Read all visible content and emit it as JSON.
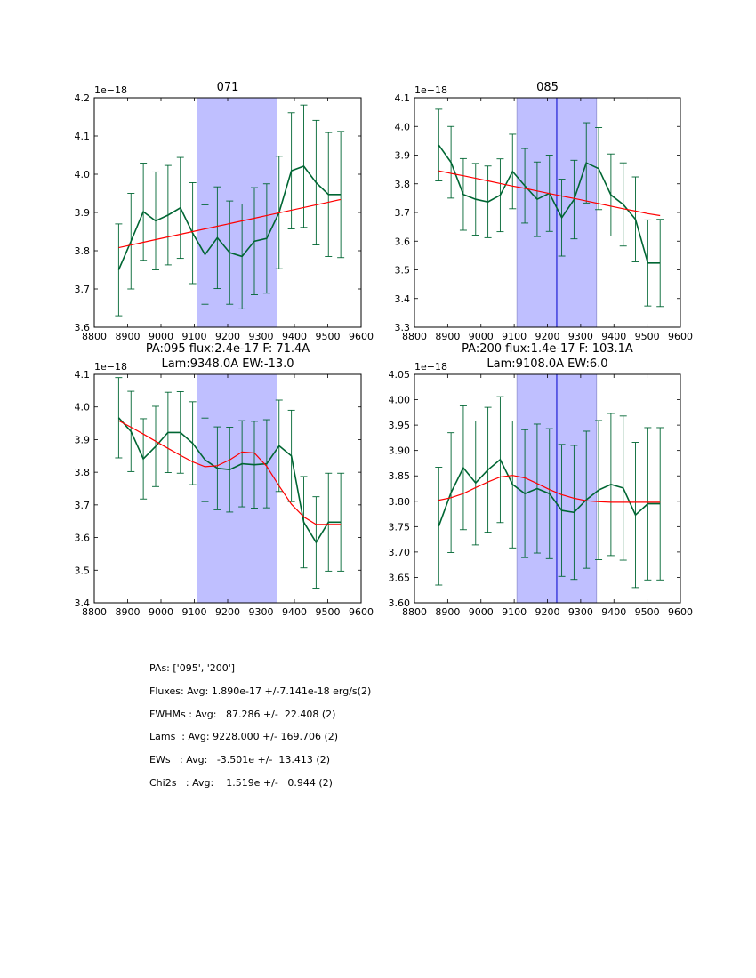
{
  "chart_data": [
    {
      "type": "line",
      "title": "071",
      "subtitle": "",
      "xlabel": "",
      "ylabel": "",
      "offset_label": "1e−18",
      "xlim": [
        8800,
        9600
      ],
      "xticks": [
        8800,
        8900,
        9000,
        9100,
        9200,
        9300,
        9400,
        9500,
        9600
      ],
      "ylim": [
        3.6,
        4.2
      ],
      "yticks": [
        3.6,
        3.7,
        3.8,
        3.9,
        4.0,
        4.1,
        4.2
      ],
      "ytick_labels": [
        "3.6",
        "3.7",
        "3.8",
        "3.9",
        "4.0",
        "4.1",
        "4.2"
      ],
      "band": [
        9108,
        9348
      ],
      "vline": 9228,
      "x": [
        8873,
        8910,
        8947,
        8984,
        9021,
        9058,
        9095,
        9132,
        9169,
        9206,
        9243,
        9280,
        9317,
        9354,
        9391,
        9428,
        9465,
        9502,
        9539
      ],
      "series": [
        {
          "name": "flux",
          "color": "#006633",
          "values": [
            3.75,
            3.825,
            3.902,
            3.878,
            3.893,
            3.912,
            3.846,
            3.79,
            3.834,
            3.795,
            3.785,
            3.825,
            3.832,
            3.9,
            4.009,
            4.021,
            3.978,
            3.947,
            3.947
          ]
        },
        {
          "name": "fit",
          "color": "#ff0000",
          "values": [
            3.808,
            3.815,
            3.822,
            3.829,
            3.836,
            3.843,
            3.85,
            3.857,
            3.864,
            3.871,
            3.878,
            3.885,
            3.892,
            3.899,
            3.906,
            3.913,
            3.92,
            3.927,
            3.934
          ]
        }
      ],
      "errors": [
        0.12,
        0.125,
        0.127,
        0.128,
        0.13,
        0.132,
        0.132,
        0.13,
        0.133,
        0.135,
        0.137,
        0.14,
        0.143,
        0.147,
        0.152,
        0.16,
        0.163,
        0.162,
        0.165
      ]
    },
    {
      "type": "line",
      "title": "085",
      "subtitle": "",
      "xlabel": "",
      "ylabel": "",
      "offset_label": "1e−18",
      "xlim": [
        8800,
        9600
      ],
      "xticks": [
        8800,
        8900,
        9000,
        9100,
        9200,
        9300,
        9400,
        9500,
        9600
      ],
      "ylim": [
        3.3,
        4.1
      ],
      "yticks": [
        3.3,
        3.4,
        3.5,
        3.6,
        3.7,
        3.8,
        3.9,
        4.0,
        4.1
      ],
      "ytick_labels": [
        "3.3",
        "3.4",
        "3.5",
        "3.6",
        "3.7",
        "3.8",
        "3.9",
        "4.0",
        "4.1"
      ],
      "band": [
        9108,
        9348
      ],
      "vline": 9228,
      "x": [
        8873,
        8910,
        8947,
        8984,
        9021,
        9058,
        9095,
        9132,
        9169,
        9206,
        9243,
        9280,
        9317,
        9354,
        9391,
        9428,
        9465,
        9502,
        9539
      ],
      "series": [
        {
          "name": "flux",
          "color": "#006633",
          "values": [
            3.935,
            3.875,
            3.763,
            3.746,
            3.737,
            3.76,
            3.843,
            3.793,
            3.746,
            3.767,
            3.682,
            3.745,
            3.873,
            3.853,
            3.761,
            3.728,
            3.676,
            3.524,
            3.524
          ]
        },
        {
          "name": "fit",
          "color": "#ff0000",
          "values": [
            3.845,
            3.836,
            3.828,
            3.819,
            3.81,
            3.801,
            3.792,
            3.784,
            3.775,
            3.766,
            3.757,
            3.749,
            3.74,
            3.731,
            3.722,
            3.713,
            3.705,
            3.696,
            3.689
          ]
        }
      ],
      "errors": [
        0.125,
        0.125,
        0.125,
        0.125,
        0.125,
        0.127,
        0.13,
        0.13,
        0.13,
        0.133,
        0.134,
        0.137,
        0.14,
        0.143,
        0.143,
        0.145,
        0.148,
        0.15,
        0.152
      ]
    },
    {
      "type": "line",
      "title": "PA:095 flux:2.4e-17 F: 71.4A",
      "subtitle": "Lam:9348.0A EW:-13.0",
      "xlabel": "",
      "ylabel": "",
      "offset_label": "1e−18",
      "xlim": [
        8800,
        9600
      ],
      "xticks": [
        8800,
        8900,
        9000,
        9100,
        9200,
        9300,
        9400,
        9500,
        9600
      ],
      "ylim": [
        3.4,
        4.1
      ],
      "yticks": [
        3.4,
        3.5,
        3.6,
        3.7,
        3.8,
        3.9,
        4.0,
        4.1
      ],
      "ytick_labels": [
        "3.4",
        "3.5",
        "3.6",
        "3.7",
        "3.8",
        "3.9",
        "4.0",
        "4.1"
      ],
      "band": [
        9108,
        9348
      ],
      "vline": 9228,
      "x": [
        8873,
        8910,
        8947,
        8984,
        9021,
        9058,
        9095,
        9132,
        9169,
        9206,
        9243,
        9280,
        9317,
        9354,
        9391,
        9428,
        9465,
        9502,
        9539
      ],
      "series": [
        {
          "name": "flux",
          "color": "#006633",
          "values": [
            3.967,
            3.925,
            3.841,
            3.879,
            3.922,
            3.922,
            3.889,
            3.838,
            3.812,
            3.808,
            3.826,
            3.823,
            3.826,
            3.881,
            3.85,
            3.647,
            3.585,
            3.647,
            3.647
          ]
        },
        {
          "name": "fit",
          "color": "#ff0000",
          "values": [
            3.958,
            3.938,
            3.917,
            3.895,
            3.873,
            3.852,
            3.832,
            3.817,
            3.82,
            3.838,
            3.862,
            3.859,
            3.818,
            3.758,
            3.702,
            3.663,
            3.64,
            3.64,
            3.64
          ]
        }
      ],
      "errors": [
        0.123,
        0.123,
        0.123,
        0.123,
        0.123,
        0.125,
        0.127,
        0.128,
        0.127,
        0.13,
        0.132,
        0.133,
        0.135,
        0.14,
        0.14,
        0.14,
        0.14,
        0.15,
        0.15
      ]
    },
    {
      "type": "line",
      "title": "PA:200 flux:1.4e-17 F: 103.1A",
      "subtitle": "Lam:9108.0A EW:6.0",
      "xlabel": "",
      "ylabel": "",
      "offset_label": "1e−18",
      "xlim": [
        8800,
        9600
      ],
      "xticks": [
        8800,
        8900,
        9000,
        9100,
        9200,
        9300,
        9400,
        9500,
        9600
      ],
      "ylim": [
        3.6,
        4.05
      ],
      "yticks": [
        3.6,
        3.65,
        3.7,
        3.75,
        3.8,
        3.85,
        3.9,
        3.95,
        4.0,
        4.05
      ],
      "ytick_labels": [
        "3.60",
        "3.65",
        "3.70",
        "3.75",
        "3.80",
        "3.85",
        "3.90",
        "3.95",
        "4.00",
        "4.05"
      ],
      "band": [
        9108,
        9348
      ],
      "vline": 9228,
      "x": [
        8873,
        8910,
        8947,
        8984,
        9021,
        9058,
        9095,
        9132,
        9169,
        9206,
        9243,
        9280,
        9317,
        9354,
        9391,
        9428,
        9465,
        9502,
        9539
      ],
      "series": [
        {
          "name": "flux",
          "color": "#006633",
          "values": [
            3.751,
            3.817,
            3.866,
            3.836,
            3.862,
            3.882,
            3.833,
            3.815,
            3.825,
            3.815,
            3.782,
            3.778,
            3.803,
            3.822,
            3.833,
            3.826,
            3.773,
            3.795,
            3.795
          ]
        },
        {
          "name": "fit",
          "color": "#ff0000",
          "values": [
            3.802,
            3.807,
            3.815,
            3.827,
            3.838,
            3.848,
            3.851,
            3.846,
            3.835,
            3.823,
            3.813,
            3.806,
            3.801,
            3.799,
            3.798,
            3.798,
            3.798,
            3.798,
            3.798
          ]
        }
      ],
      "errors": [
        0.116,
        0.118,
        0.122,
        0.122,
        0.123,
        0.124,
        0.125,
        0.126,
        0.127,
        0.128,
        0.13,
        0.132,
        0.135,
        0.137,
        0.14,
        0.142,
        0.143,
        0.15,
        0.15
      ]
    }
  ],
  "stats": [
    "PAs: ['095', '200']",
    "Fluxes: Avg: 1.890e-17 +/-7.141e-18 erg/s(2)",
    "FWHMs : Avg:   87.286 +/-  22.408 (2)",
    "Lams  : Avg: 9228.000 +/- 169.706 (2)",
    "EWs   : Avg:   -3.501e +/-  13.413 (2)",
    "Chi2s   : Avg:    1.519e +/-   0.944 (2)"
  ]
}
